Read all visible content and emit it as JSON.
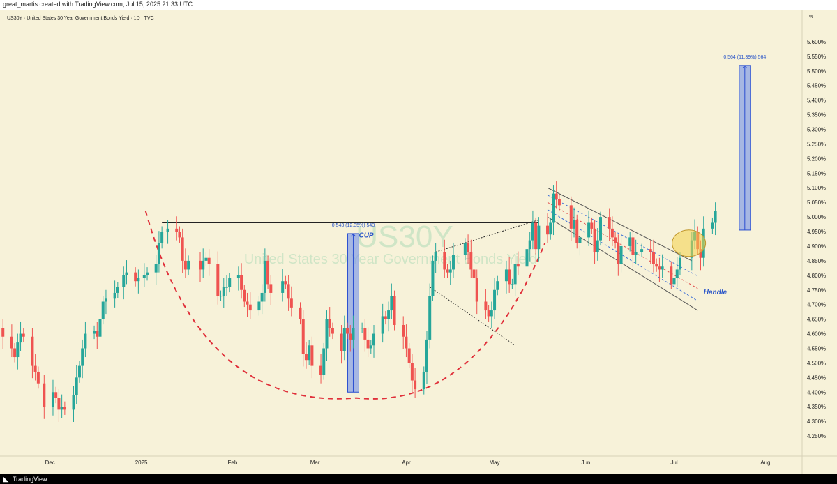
{
  "header": {
    "attribution": "great_martis created with TradingView.com, Jul 15, 2025 21:33 UTC"
  },
  "symbol_line": "US30Y · United States 30 Year Government Bonds Yield · 1D · TVC",
  "footer": {
    "brand": "TradingView"
  },
  "colors": {
    "background": "#f7f2d9",
    "up": "#26a69a",
    "down": "#ef5350",
    "measure": "#7b96e8",
    "cup": "#e0303a",
    "annotation": "#2a55c8",
    "circle": "#f4d14a"
  },
  "chart_data": {
    "type": "candlestick",
    "symbol": "US30Y",
    "watermark": {
      "ticker": "US30Y",
      "name": "United States 30 Year Government Bonds Yield"
    },
    "y_axis": {
      "unit": "%",
      "ylim": [
        4.2,
        5.65
      ],
      "ticks": [
        "5.600%",
        "5.550%",
        "5.500%",
        "5.450%",
        "5.400%",
        "5.350%",
        "5.300%",
        "5.250%",
        "5.200%",
        "5.150%",
        "5.100%",
        "5.050%",
        "5.000%",
        "4.950%",
        "4.900%",
        "4.850%",
        "4.800%",
        "4.750%",
        "4.700%",
        "4.650%",
        "4.600%",
        "4.550%",
        "4.500%",
        "4.450%",
        "4.400%",
        "4.350%",
        "4.300%",
        "4.250%"
      ],
      "tick_values": [
        5.6,
        5.55,
        5.5,
        5.45,
        5.4,
        5.35,
        5.3,
        5.25,
        5.2,
        5.15,
        5.1,
        5.05,
        5.0,
        4.95,
        4.9,
        4.85,
        4.8,
        4.75,
        4.7,
        4.65,
        4.6,
        4.55,
        4.5,
        4.45,
        4.4,
        4.35,
        4.3,
        4.25
      ]
    },
    "x_axis": {
      "date_start": "2024-11-14",
      "date_end": "2025-08-13",
      "labels": [
        {
          "text": "Dec",
          "date": "2024-12-01"
        },
        {
          "text": "2025",
          "date": "2025-01-01"
        },
        {
          "text": "Feb",
          "date": "2025-02-01"
        },
        {
          "text": "Mar",
          "date": "2025-03-01"
        },
        {
          "text": "Apr",
          "date": "2025-04-01"
        },
        {
          "text": "May",
          "date": "2025-05-01"
        },
        {
          "text": "Jun",
          "date": "2025-06-01"
        },
        {
          "text": "Jul",
          "date": "2025-07-01"
        },
        {
          "text": "Aug",
          "date": "2025-08-01"
        }
      ]
    },
    "close_series": [
      [
        "2024-11-14",
        4.62
      ],
      [
        "2024-11-15",
        4.59
      ],
      [
        "2024-11-18",
        4.55
      ],
      [
        "2024-11-19",
        4.52
      ],
      [
        "2024-11-20",
        4.57
      ],
      [
        "2024-11-21",
        4.6
      ],
      [
        "2024-11-22",
        4.59
      ],
      [
        "2024-11-25",
        4.49
      ],
      [
        "2024-11-26",
        4.47
      ],
      [
        "2024-11-27",
        4.43
      ],
      [
        "2024-11-29",
        4.35
      ],
      [
        "2024-12-02",
        4.4
      ],
      [
        "2024-12-03",
        4.38
      ],
      [
        "2024-12-04",
        4.34
      ],
      [
        "2024-12-05",
        4.35
      ],
      [
        "2024-12-06",
        4.34
      ],
      [
        "2024-12-09",
        4.39
      ],
      [
        "2024-12-10",
        4.45
      ],
      [
        "2024-12-11",
        4.49
      ],
      [
        "2024-12-12",
        4.55
      ],
      [
        "2024-12-13",
        4.6
      ],
      [
        "2024-12-16",
        4.61
      ],
      [
        "2024-12-17",
        4.59
      ],
      [
        "2024-12-18",
        4.65
      ],
      [
        "2024-12-19",
        4.71
      ],
      [
        "2024-12-20",
        4.72
      ],
      [
        "2024-12-23",
        4.74
      ],
      [
        "2024-12-24",
        4.76
      ],
      [
        "2024-12-26",
        4.8
      ],
      [
        "2024-12-27",
        4.81
      ],
      [
        "2024-12-30",
        4.78
      ],
      [
        "2024-12-31",
        4.79
      ],
      [
        "2025-01-02",
        4.8
      ],
      [
        "2025-01-03",
        4.81
      ],
      [
        "2025-01-06",
        4.84
      ],
      [
        "2025-01-07",
        4.91
      ],
      [
        "2025-01-08",
        4.95
      ],
      [
        "2025-01-10",
        4.96
      ],
      [
        "2025-01-13",
        4.95
      ],
      [
        "2025-01-14",
        4.93
      ],
      [
        "2025-01-15",
        4.85
      ],
      [
        "2025-01-16",
        4.82
      ],
      [
        "2025-01-17",
        4.85
      ],
      [
        "2025-01-21",
        4.82
      ],
      [
        "2025-01-22",
        4.85
      ],
      [
        "2025-01-23",
        4.86
      ],
      [
        "2025-01-24",
        4.84
      ],
      [
        "2025-01-27",
        4.73
      ],
      [
        "2025-01-28",
        4.73
      ],
      [
        "2025-01-29",
        4.76
      ],
      [
        "2025-01-30",
        4.76
      ],
      [
        "2025-01-31",
        4.79
      ],
      [
        "2025-02-03",
        4.8
      ],
      [
        "2025-02-04",
        4.75
      ],
      [
        "2025-02-05",
        4.71
      ],
      [
        "2025-02-06",
        4.7
      ],
      [
        "2025-02-07",
        4.68
      ],
      [
        "2025-02-10",
        4.71
      ],
      [
        "2025-02-11",
        4.74
      ],
      [
        "2025-02-12",
        4.85
      ],
      [
        "2025-02-13",
        4.77
      ],
      [
        "2025-02-14",
        4.74
      ],
      [
        "2025-02-18",
        4.78
      ],
      [
        "2025-02-19",
        4.77
      ],
      [
        "2025-02-20",
        4.72
      ],
      [
        "2025-02-21",
        4.69
      ],
      [
        "2025-02-24",
        4.65
      ],
      [
        "2025-02-25",
        4.53
      ],
      [
        "2025-02-26",
        4.51
      ],
      [
        "2025-02-27",
        4.56
      ],
      [
        "2025-02-28",
        4.49
      ],
      [
        "2025-03-03",
        4.46
      ],
      [
        "2025-03-04",
        4.55
      ],
      [
        "2025-03-05",
        4.65
      ],
      [
        "2025-03-06",
        4.62
      ],
      [
        "2025-03-07",
        4.6
      ],
      [
        "2025-03-10",
        4.54
      ],
      [
        "2025-03-11",
        4.62
      ],
      [
        "2025-03-12",
        4.6
      ],
      [
        "2025-03-13",
        4.58
      ],
      [
        "2025-03-14",
        4.62
      ],
      [
        "2025-03-17",
        4.62
      ],
      [
        "2025-03-18",
        4.58
      ],
      [
        "2025-03-19",
        4.55
      ],
      [
        "2025-03-20",
        4.56
      ],
      [
        "2025-03-21",
        4.6
      ],
      [
        "2025-03-24",
        4.66
      ],
      [
        "2025-03-25",
        4.65
      ],
      [
        "2025-03-26",
        4.68
      ],
      [
        "2025-03-27",
        4.73
      ],
      [
        "2025-03-28",
        4.63
      ],
      [
        "2025-03-31",
        4.59
      ],
      [
        "2025-04-01",
        4.55
      ],
      [
        "2025-04-02",
        4.5
      ],
      [
        "2025-04-03",
        4.44
      ],
      [
        "2025-04-04",
        4.41
      ],
      [
        "2025-04-07",
        4.47
      ],
      [
        "2025-04-08",
        4.58
      ],
      [
        "2025-04-09",
        4.73
      ],
      [
        "2025-04-10",
        4.85
      ],
      [
        "2025-04-11",
        4.88
      ],
      [
        "2025-04-14",
        4.82
      ],
      [
        "2025-04-15",
        4.81
      ],
      [
        "2025-04-16",
        4.82
      ],
      [
        "2025-04-17",
        4.87
      ],
      [
        "2025-04-21",
        4.91
      ],
      [
        "2025-04-22",
        4.88
      ],
      [
        "2025-04-23",
        4.82
      ],
      [
        "2025-04-24",
        4.79
      ],
      [
        "2025-04-25",
        4.71
      ],
      [
        "2025-04-28",
        4.68
      ],
      [
        "2025-04-29",
        4.66
      ],
      [
        "2025-04-30",
        4.68
      ],
      [
        "2025-05-01",
        4.75
      ],
      [
        "2025-05-02",
        4.78
      ],
      [
        "2025-05-05",
        4.82
      ],
      [
        "2025-05-06",
        4.77
      ],
      [
        "2025-05-07",
        4.77
      ],
      [
        "2025-05-08",
        4.84
      ],
      [
        "2025-05-09",
        4.83
      ],
      [
        "2025-05-12",
        4.89
      ],
      [
        "2025-05-13",
        4.92
      ],
      [
        "2025-05-14",
        4.98
      ],
      [
        "2025-05-15",
        4.89
      ],
      [
        "2025-05-16",
        4.97
      ],
      [
        "2025-05-19",
        4.94
      ],
      [
        "2025-05-20",
        4.98
      ],
      [
        "2025-05-21",
        5.08
      ],
      [
        "2025-05-22",
        5.06
      ],
      [
        "2025-05-23",
        5.04
      ],
      [
        "2025-05-27",
        4.96
      ],
      [
        "2025-05-28",
        4.99
      ],
      [
        "2025-05-29",
        4.91
      ],
      [
        "2025-05-30",
        4.93
      ],
      [
        "2025-06-02",
        4.98
      ],
      [
        "2025-06-03",
        4.96
      ],
      [
        "2025-06-04",
        4.88
      ],
      [
        "2025-06-05",
        4.92
      ],
      [
        "2025-06-06",
        5.0
      ],
      [
        "2025-06-09",
        4.96
      ],
      [
        "2025-06-10",
        4.93
      ],
      [
        "2025-06-11",
        4.91
      ],
      [
        "2025-06-12",
        4.84
      ],
      [
        "2025-06-13",
        4.9
      ],
      [
        "2025-06-16",
        4.93
      ],
      [
        "2025-06-17",
        4.87
      ],
      [
        "2025-06-18",
        4.88
      ],
      [
        "2025-06-20",
        4.89
      ],
      [
        "2025-06-23",
        4.88
      ],
      [
        "2025-06-24",
        4.84
      ],
      [
        "2025-06-25",
        4.83
      ],
      [
        "2025-06-26",
        4.82
      ],
      [
        "2025-06-27",
        4.83
      ],
      [
        "2025-06-30",
        4.77
      ],
      [
        "2025-07-01",
        4.79
      ],
      [
        "2025-07-02",
        4.82
      ],
      [
        "2025-07-03",
        4.86
      ],
      [
        "2025-07-07",
        4.92
      ],
      [
        "2025-07-08",
        4.95
      ],
      [
        "2025-07-09",
        4.89
      ],
      [
        "2025-07-10",
        4.86
      ],
      [
        "2025-07-11",
        4.96
      ],
      [
        "2025-07-14",
        4.98
      ],
      [
        "2025-07-15",
        5.02
      ]
    ],
    "annotations": {
      "cup_label": "CUP",
      "handle_label": "Handle",
      "measure_left": {
        "label": "0.543 (12.35%) 543",
        "from": 4.4,
        "to": 4.943,
        "date": "2025-03-14"
      },
      "measure_right": {
        "label": "0.564 (11.39%) 564",
        "from": 4.955,
        "to": 5.519,
        "date": "2025-07-25"
      },
      "neckline": {
        "value": 4.98,
        "from_date": "2025-01-08",
        "to_date": "2025-05-16"
      },
      "channel_upper": {
        "from": [
          "2025-05-19",
          5.1
        ],
        "to": [
          "2025-07-07",
          4.85
        ]
      },
      "channel_lower": {
        "from": [
          "2025-05-19",
          5.0
        ],
        "to": [
          "2025-07-09",
          4.68
        ]
      },
      "falling_wedge_top": {
        "from": [
          "2025-04-11",
          4.88
        ],
        "to": [
          "2025-05-16",
          4.99
        ]
      },
      "falling_wedge_bottom": {
        "from": [
          "2025-04-09",
          4.76
        ],
        "to": [
          "2025-05-08",
          4.56
        ]
      }
    }
  }
}
